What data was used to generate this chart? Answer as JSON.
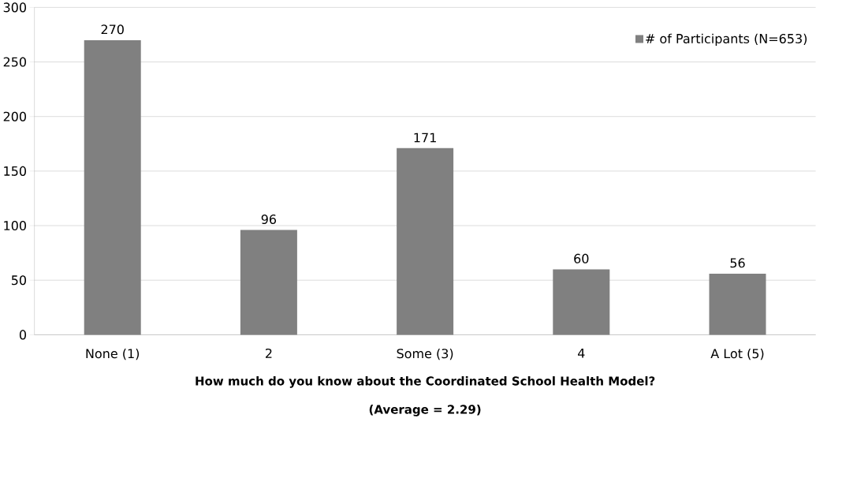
{
  "chart_data": {
    "type": "bar",
    "categories": [
      "None (1)",
      "2",
      "Some (3)",
      "4",
      "A Lot (5)"
    ],
    "series": [
      {
        "name": "# of Participants (N=653)",
        "color": "#808080",
        "values": [
          270,
          96,
          171,
          60,
          56
        ]
      }
    ],
    "xlabel": "How much do you know about the Coordinated School Health Model?",
    "annotations": [
      "(Average = 2.29)"
    ],
    "ylim": [
      0,
      300
    ],
    "yticks": [
      0,
      50,
      100,
      150,
      200,
      250,
      300
    ],
    "grid": "y",
    "legend": "top right",
    "data_labels": true
  }
}
